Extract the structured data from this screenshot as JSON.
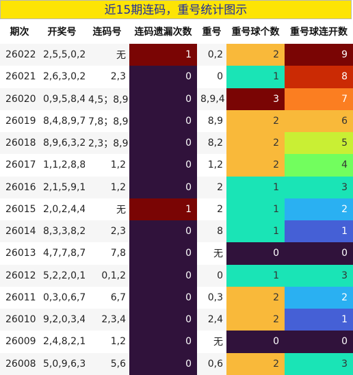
{
  "title": "近15期连码，重号统计图示",
  "headers": [
    "期次",
    "开奖号",
    "连码号",
    "连码遗漏次数",
    "重号",
    "重号球个数",
    "重号球连开数"
  ],
  "rows": [
    {
      "issue": "26022",
      "draw": "2,5,5,0,2",
      "links": "无",
      "miss": "1",
      "miss_color": "#7a0504",
      "dup": "0,2",
      "count": "2",
      "count_color": "#f9b93a",
      "streak": "9",
      "streak_color": "#7a0504"
    },
    {
      "issue": "26021",
      "draw": "2,6,3,0,2",
      "links": "2,3",
      "miss": "0",
      "miss_color": "#30123b",
      "dup": "0",
      "count": "1",
      "count_color": "#1ae4b6",
      "streak": "8",
      "streak_color": "#cb2a04"
    },
    {
      "issue": "26020",
      "draw": "0,9,5,8,4",
      "links": "4,5；8,9",
      "miss": "0",
      "miss_color": "#30123b",
      "dup": "8,9,4",
      "count": "3",
      "count_color": "#7a0504",
      "streak": "7",
      "streak_color": "#fb7e21"
    },
    {
      "issue": "26019",
      "draw": "8,4,8,9,7",
      "links": "7,8；8,9",
      "miss": "0",
      "miss_color": "#30123b",
      "dup": "8,9",
      "count": "2",
      "count_color": "#f9b93a",
      "streak": "6",
      "streak_color": "#f9b93a"
    },
    {
      "issue": "26018",
      "draw": "8,9,6,3,2",
      "links": "2,3；8,9",
      "miss": "0",
      "miss_color": "#30123b",
      "dup": "8,2",
      "count": "2",
      "count_color": "#f9b93a",
      "streak": "5",
      "streak_color": "#c9ef34"
    },
    {
      "issue": "26017",
      "draw": "1,1,2,8,8",
      "links": "1,2",
      "miss": "0",
      "miss_color": "#30123b",
      "dup": "1,2",
      "count": "2",
      "count_color": "#f9b93a",
      "streak": "4",
      "streak_color": "#72fe5e"
    },
    {
      "issue": "26016",
      "draw": "2,1,5,9,1",
      "links": "1,2",
      "miss": "0",
      "miss_color": "#30123b",
      "dup": "2",
      "count": "1",
      "count_color": "#1ae4b6",
      "streak": "3",
      "streak_color": "#1ae4b6"
    },
    {
      "issue": "26015",
      "draw": "2,0,2,4,4",
      "links": "无",
      "miss": "1",
      "miss_color": "#7a0504",
      "dup": "2",
      "count": "1",
      "count_color": "#1ae4b6",
      "streak": "2",
      "streak_color": "#2ab0f2"
    },
    {
      "issue": "26014",
      "draw": "8,3,3,8,2",
      "links": "2,3",
      "miss": "0",
      "miss_color": "#30123b",
      "dup": "8",
      "count": "1",
      "count_color": "#1ae4b6",
      "streak": "1",
      "streak_color": "#4560d6"
    },
    {
      "issue": "26013",
      "draw": "4,7,7,8,7",
      "links": "7,8",
      "miss": "0",
      "miss_color": "#30123b",
      "dup": "无",
      "count": "0",
      "count_color": "#30123b",
      "streak": "0",
      "streak_color": "#30123b"
    },
    {
      "issue": "26012",
      "draw": "5,2,2,0,1",
      "links": "0,1,2",
      "miss": "0",
      "miss_color": "#30123b",
      "dup": "0",
      "count": "1",
      "count_color": "#1ae4b6",
      "streak": "3",
      "streak_color": "#1ae4b6"
    },
    {
      "issue": "26011",
      "draw": "0,3,0,6,7",
      "links": "6,7",
      "miss": "0",
      "miss_color": "#30123b",
      "dup": "0,3",
      "count": "2",
      "count_color": "#f9b93a",
      "streak": "2",
      "streak_color": "#2ab0f2"
    },
    {
      "issue": "26010",
      "draw": "9,2,0,3,4",
      "links": "2,3,4",
      "miss": "0",
      "miss_color": "#30123b",
      "dup": "2,4",
      "count": "2",
      "count_color": "#f9b93a",
      "streak": "1",
      "streak_color": "#4560d6"
    },
    {
      "issue": "26009",
      "draw": "2,4,8,2,1",
      "links": "1,2",
      "miss": "0",
      "miss_color": "#30123b",
      "dup": "无",
      "count": "0",
      "count_color": "#30123b",
      "streak": "0",
      "streak_color": "#30123b"
    },
    {
      "issue": "26008",
      "draw": "5,0,9,6,3",
      "links": "5,6",
      "miss": "0",
      "miss_color": "#30123b",
      "dup": "0,6",
      "count": "2",
      "count_color": "#f9b93a",
      "streak": "3",
      "streak_color": "#1ae4b6"
    }
  ]
}
